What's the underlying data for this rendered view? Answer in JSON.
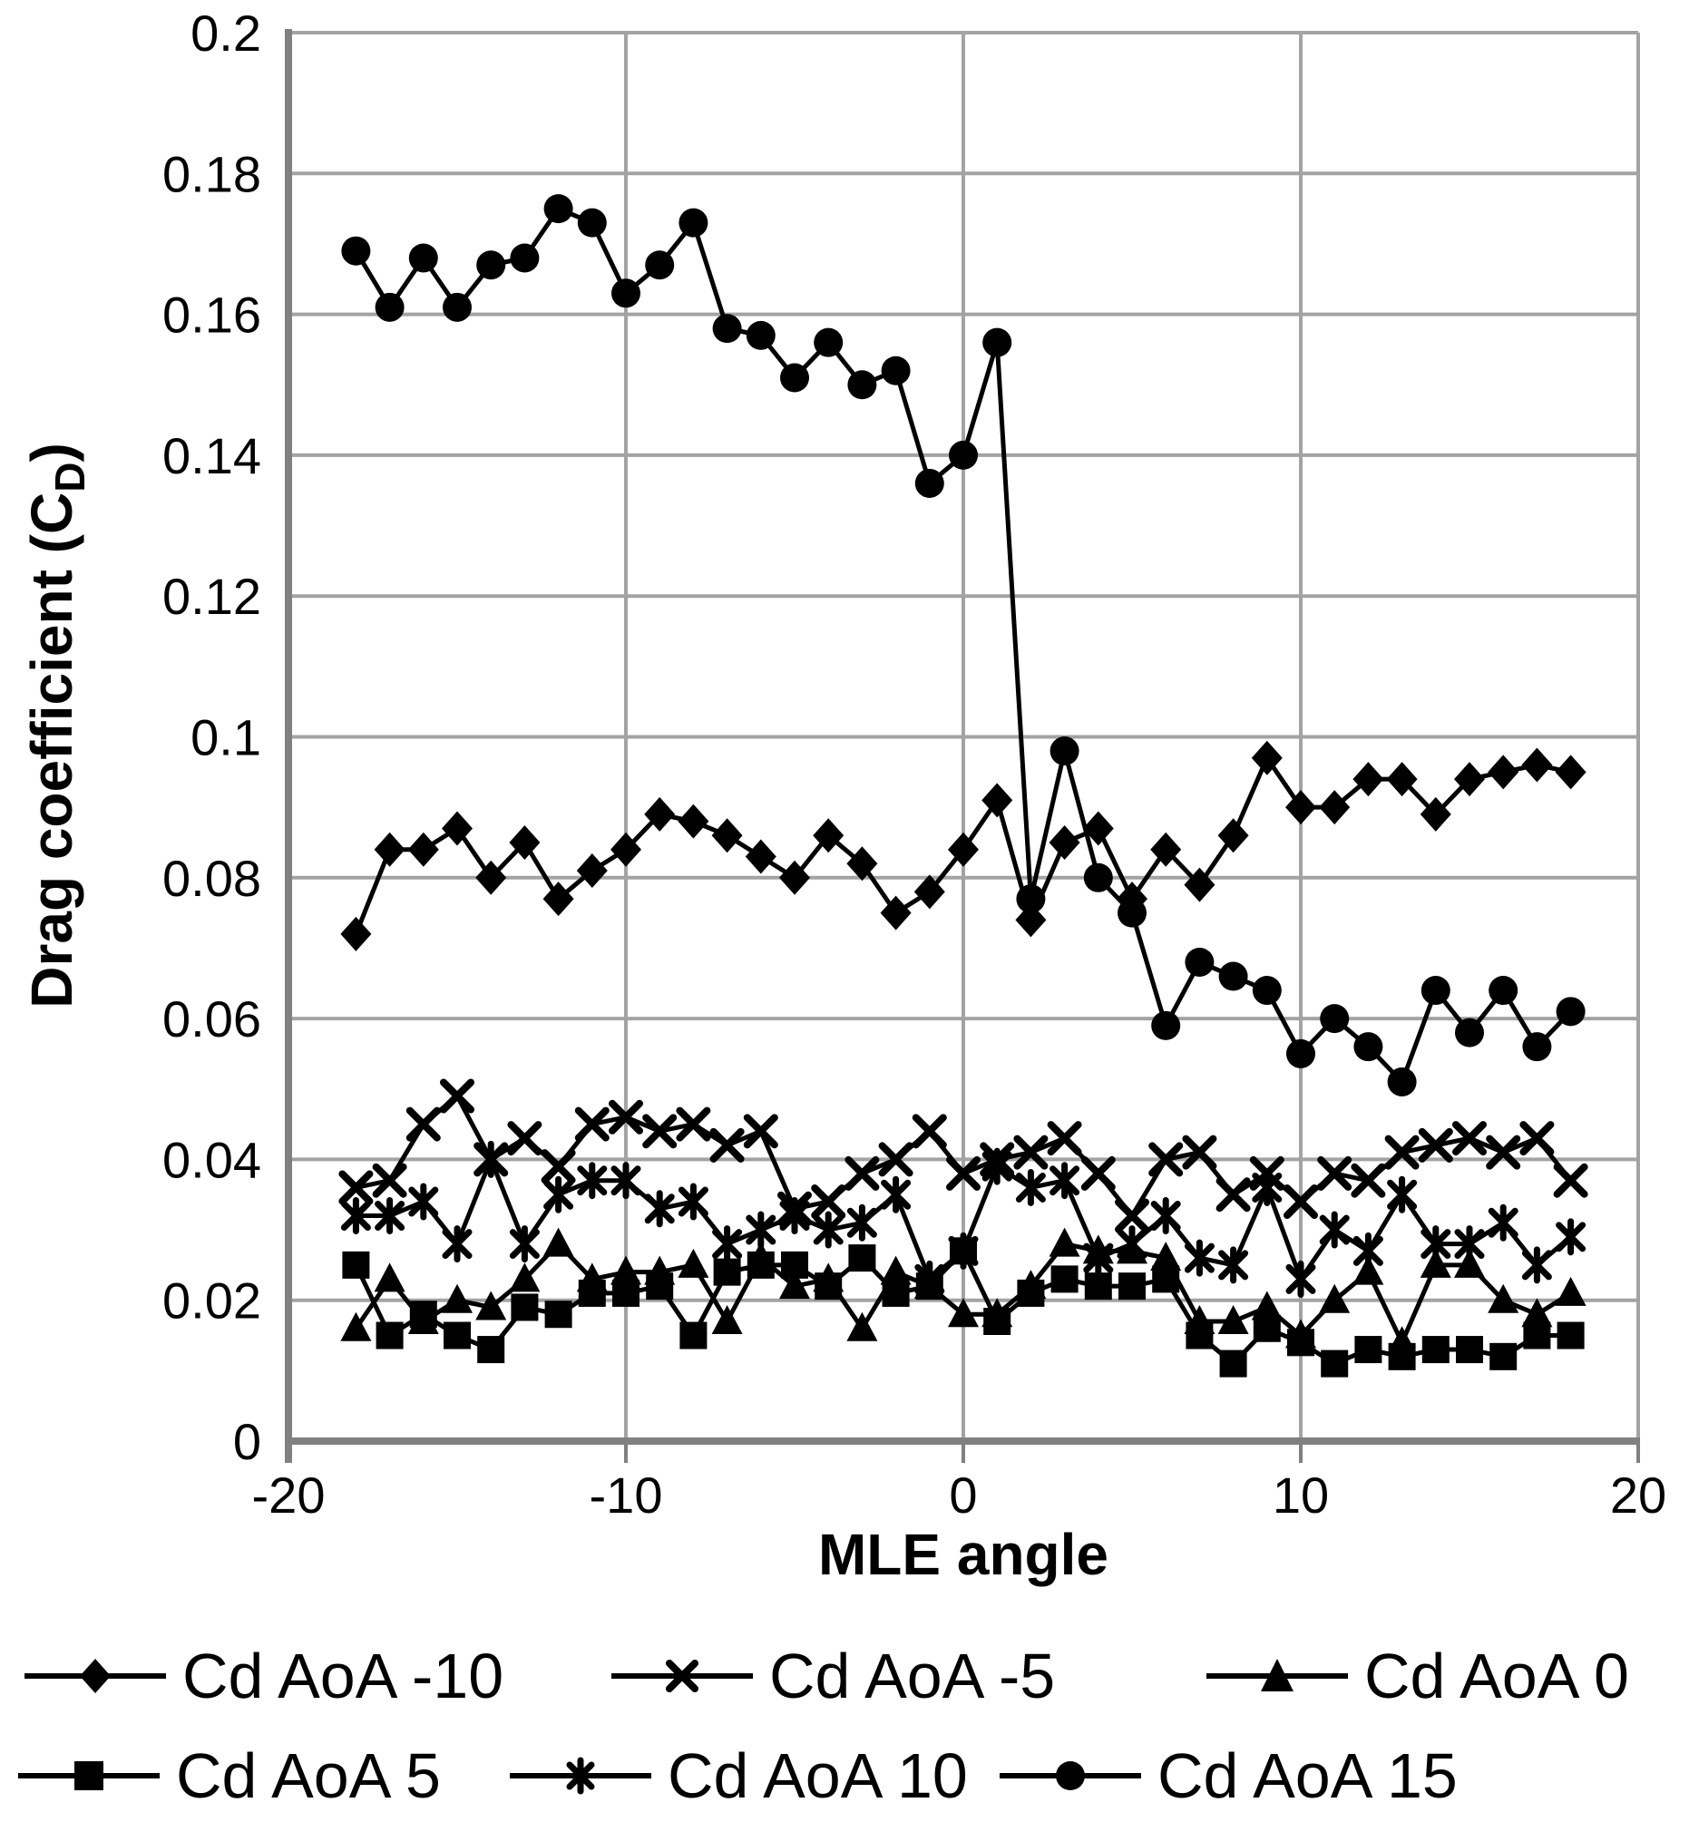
{
  "chart_data": {
    "type": "line",
    "title": "",
    "xlabel": "MLE angle",
    "ylabel_prefix": "Drag coefficient (C",
    "ylabel_sub": "D",
    "ylabel_suffix": ")",
    "xlim": [
      -20,
      20
    ],
    "ylim": [
      0,
      0.2
    ],
    "grid": true,
    "legend_position": "bottom",
    "colors": {
      "series": "#000000",
      "gridline": "#a3a3a3",
      "axis": "#808080",
      "text": "#000000",
      "background": "#ffffff"
    },
    "xticks": [
      {
        "v": -20,
        "label": "-20"
      },
      {
        "v": -10,
        "label": "-10"
      },
      {
        "v": 0,
        "label": "0"
      },
      {
        "v": 10,
        "label": "10"
      },
      {
        "v": 20,
        "label": "20"
      }
    ],
    "yticks": [
      {
        "v": 0.2,
        "label": "0.2"
      },
      {
        "v": 0.18,
        "label": "0.18"
      },
      {
        "v": 0.16,
        "label": "0.16"
      },
      {
        "v": 0.14,
        "label": "0.14"
      },
      {
        "v": 0.12,
        "label": "0.12"
      },
      {
        "v": 0.1,
        "label": "0.1"
      },
      {
        "v": 0.08,
        "label": "0.08"
      },
      {
        "v": 0.06,
        "label": "0.06"
      },
      {
        "v": 0.04,
        "label": "0.04"
      },
      {
        "v": 0.02,
        "label": "0.02"
      },
      {
        "v": 0,
        "label": "0"
      }
    ],
    "x": [
      -18,
      -17,
      -16,
      -15,
      -14,
      -13,
      -12,
      -11,
      -10,
      -9,
      -8,
      -7,
      -6,
      -5,
      -4,
      -3,
      -2,
      -1,
      0,
      1,
      2,
      3,
      4,
      5,
      6,
      7,
      8,
      9,
      10,
      11,
      12,
      13,
      14,
      15,
      16,
      17,
      18
    ],
    "series": [
      {
        "name": "Cd AoA -10",
        "marker": "diamond",
        "values": [
          0.072,
          0.084,
          0.084,
          0.087,
          0.08,
          0.085,
          0.077,
          0.081,
          0.084,
          0.089,
          0.088,
          0.086,
          0.083,
          0.08,
          0.086,
          0.082,
          0.075,
          0.078,
          0.084,
          0.091,
          0.074,
          0.085,
          0.087,
          0.077,
          0.084,
          0.079,
          0.086,
          0.097,
          0.09,
          0.09,
          0.094,
          0.094,
          0.089,
          0.094,
          0.095,
          0.096,
          0.095
        ]
      },
      {
        "name": "Cd AoA -5",
        "marker": "x",
        "values": [
          0.036,
          0.037,
          0.045,
          0.049,
          0.04,
          0.043,
          0.039,
          0.045,
          0.046,
          0.044,
          0.045,
          0.042,
          0.044,
          0.033,
          0.034,
          0.038,
          0.04,
          0.044,
          0.038,
          0.04,
          0.041,
          0.043,
          0.038,
          0.032,
          0.04,
          0.041,
          0.035,
          0.038,
          0.034,
          0.038,
          0.037,
          0.041,
          0.042,
          0.043,
          0.041,
          0.043,
          0.037
        ]
      },
      {
        "name": "Cd AoA 0",
        "marker": "triangle",
        "values": [
          0.016,
          0.023,
          0.017,
          0.02,
          0.019,
          0.023,
          0.028,
          0.023,
          0.024,
          0.024,
          0.025,
          0.017,
          0.026,
          0.022,
          0.023,
          0.016,
          0.024,
          0.022,
          0.018,
          0.018,
          0.022,
          0.028,
          0.027,
          0.027,
          0.026,
          0.017,
          0.017,
          0.019,
          0.015,
          0.02,
          0.024,
          0.014,
          0.025,
          0.025,
          0.02,
          0.018,
          0.021
        ]
      },
      {
        "name": "Cd AoA 5",
        "marker": "square",
        "values": [
          0.025,
          0.015,
          0.018,
          0.015,
          0.013,
          0.019,
          0.018,
          0.021,
          0.021,
          0.022,
          0.015,
          0.024,
          0.025,
          0.025,
          0.022,
          0.026,
          0.021,
          0.022,
          0.027,
          0.017,
          0.021,
          0.023,
          0.022,
          0.022,
          0.023,
          0.015,
          0.011,
          0.016,
          0.014,
          0.011,
          0.013,
          0.012,
          0.013,
          0.013,
          0.012,
          0.015,
          0.015
        ]
      },
      {
        "name": "Cd AoA 10",
        "marker": "asterisk",
        "values": [
          0.032,
          0.032,
          0.034,
          0.028,
          0.04,
          0.028,
          0.035,
          0.037,
          0.037,
          0.033,
          0.034,
          0.028,
          0.03,
          0.032,
          0.03,
          0.031,
          0.035,
          0.023,
          0.027,
          0.039,
          0.036,
          0.037,
          0.026,
          0.028,
          0.032,
          0.026,
          0.025,
          0.036,
          0.023,
          0.03,
          0.027,
          0.035,
          0.028,
          0.028,
          0.031,
          0.025,
          0.029
        ]
      },
      {
        "name": "Cd AoA 15",
        "marker": "circle",
        "values": [
          0.169,
          0.161,
          0.168,
          0.161,
          0.167,
          0.168,
          0.175,
          0.173,
          0.163,
          0.167,
          0.173,
          0.158,
          0.157,
          0.151,
          0.156,
          0.15,
          0.152,
          0.136,
          0.14,
          0.156,
          0.077,
          0.098,
          0.08,
          0.075,
          0.059,
          0.068,
          0.066,
          0.064,
          0.055,
          0.06,
          0.056,
          0.051,
          0.064,
          0.058,
          0.064,
          0.056,
          0.061
        ]
      }
    ]
  }
}
